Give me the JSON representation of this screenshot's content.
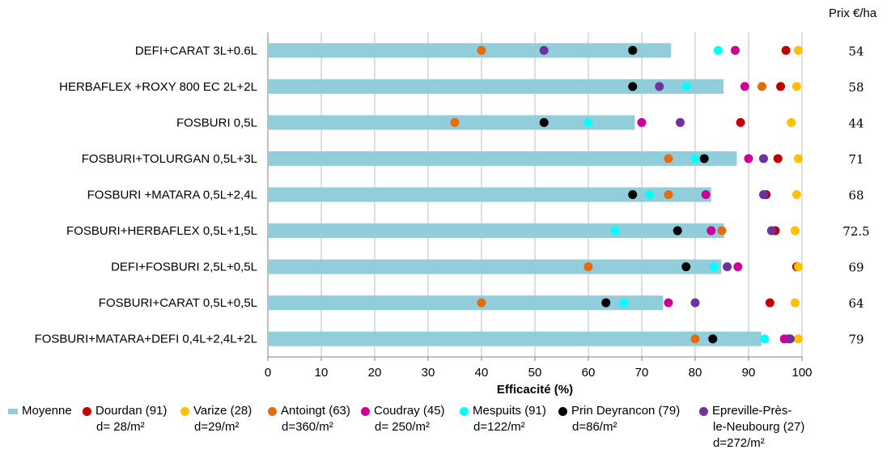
{
  "chart_data": {
    "type": "bar",
    "orientation": "horizontal",
    "xlabel": "Efficacité (%)",
    "xlim": [
      0,
      100
    ],
    "xticks": [
      0,
      10,
      20,
      30,
      40,
      50,
      60,
      70,
      80,
      90,
      100
    ],
    "grid": true,
    "price_header": "Prix €/ha",
    "categories": [
      "DEFI+CARAT 3L+0.6L",
      "HERBAFLEX +ROXY 800 EC 2L+2L",
      "FOSBURI 0,5L",
      "FOSBURI+TOLURGAN 0,5L+3L",
      "FOSBURI +MATARA 0,5L+2,4L",
      "FOSBURI+HERBAFLEX 0,5L+1,5L",
      "DEFI+FOSBURI 2,5L+0,5L",
      "FOSBURI+CARAT 0,5L+0,5L",
      "FOSBURI+MATARA+DEFI 0,4L+2,4L+2L"
    ],
    "prices": [
      "54",
      "58",
      "44",
      "71",
      "68",
      "72.5",
      "69",
      "64",
      "79"
    ],
    "bar_series": {
      "name": "Moyenne",
      "color": "#92CDDC",
      "values": [
        75.5,
        85.3,
        68.7,
        87.8,
        83,
        85.4,
        84.9,
        74,
        92.4
      ]
    },
    "point_series": [
      {
        "name": "Dourdan (91)",
        "sub": "d= 28/m²",
        "color": "#C00000",
        "values": [
          97,
          96,
          88.5,
          95.5,
          93.3,
          95,
          99,
          94,
          97.5
        ]
      },
      {
        "name": "Varize (28)",
        "sub": "d=29/m²",
        "color": "#FFC000",
        "values": [
          99.3,
          99,
          98,
          99.3,
          99,
          98.7,
          99.3,
          98.7,
          99.3
        ]
      },
      {
        "name": "Antoingt (63)",
        "sub": "d=360/m²",
        "color": "#E46C0A",
        "values": [
          40,
          92.5,
          35,
          75,
          75,
          85,
          60,
          40,
          80
        ]
      },
      {
        "name": "Coudray (45)",
        "sub": "d= 250/m²",
        "color": "#CC0099",
        "values": [
          87.5,
          89.3,
          70,
          90,
          82,
          83,
          88,
          75,
          96.7
        ]
      },
      {
        "name": "Mespuits (91)",
        "sub": "d=122/m²",
        "color": "#00FFFF",
        "values": [
          84.3,
          78.3,
          60,
          80,
          71.5,
          65,
          83.5,
          66.7,
          93
        ]
      },
      {
        "name": "Prin Deyrancon (79)",
        "sub": "d=86/m²",
        "color": "#000000",
        "values": [
          68.3,
          68.3,
          51.7,
          81.7,
          68.3,
          76.7,
          78.3,
          63.3,
          83.3
        ]
      },
      {
        "name": "Epreville-Près-le-Neubourg (27)",
        "sub": "d=272/m²",
        "color": "#7030A0",
        "values": [
          51.7,
          73.3,
          77.2,
          92.8,
          92.8,
          94.3,
          86,
          80,
          97.8
        ],
        "label_line1": "Epreville-Près-",
        "label_line2": "le-Neubourg (27)"
      }
    ]
  }
}
